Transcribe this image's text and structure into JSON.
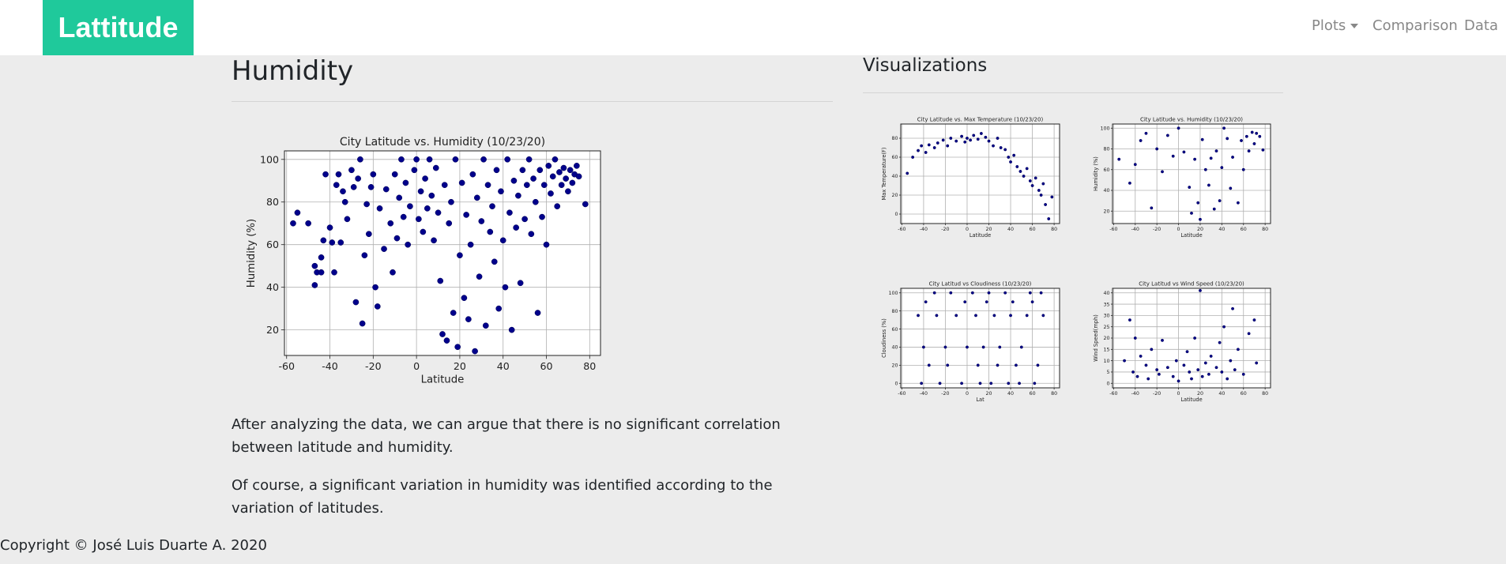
{
  "nav": {
    "brand": "Lattitude",
    "links": [
      "Plots",
      "Comparison",
      "Data"
    ]
  },
  "main": {
    "heading": "Humidity",
    "paragraphs": [
      "After analyzing the data, we can argue that there is no significant correlation between latitude and humidity.",
      "Of course, a significant variation in humidity was identified according to the variation of latitudes."
    ]
  },
  "sidebar": {
    "heading": "Visualizations"
  },
  "footer": {
    "copyright": "Copyright © José Luis Duarte A. 2020"
  },
  "chart_data": [
    {
      "type": "scatter",
      "title": "City Latitude vs. Humidity (10/23/20)",
      "xlabel": "Latitude",
      "ylabel": "Humidity (%)",
      "color": "#00008b",
      "grid": true,
      "xlim": [
        -61,
        85
      ],
      "ylim": [
        8,
        104
      ],
      "xticks": [
        -60,
        -40,
        -20,
        0,
        20,
        40,
        60,
        80
      ],
      "yticks": [
        20,
        40,
        60,
        80,
        100
      ],
      "x": [
        -57,
        -55,
        -47,
        -47,
        -46,
        -44,
        -44,
        -43,
        -42,
        -40,
        -39,
        -38,
        -37,
        -36,
        -35,
        -34,
        -33,
        -32,
        -30,
        -29,
        -28,
        -27,
        -26,
        -25,
        -24,
        -23,
        -22,
        -21,
        -20,
        -19,
        -18,
        -17,
        -15,
        -14,
        -12,
        -11,
        -10,
        -9,
        -8,
        -7,
        -6,
        -5,
        -4,
        -3,
        -1,
        0,
        1,
        2,
        3,
        4,
        5,
        6,
        7,
        8,
        9,
        10,
        11,
        12,
        13,
        14,
        15,
        16,
        17,
        18,
        19,
        20,
        21,
        22,
        23,
        24,
        25,
        26,
        27,
        28,
        29,
        30,
        31,
        32,
        33,
        34,
        35,
        36,
        37,
        38,
        39,
        40,
        41,
        42,
        43,
        44,
        45,
        46,
        47,
        48,
        49,
        50,
        51,
        52,
        53,
        54,
        55,
        56,
        57,
        58,
        59,
        60,
        61,
        62,
        63,
        64,
        65,
        66,
        67,
        68,
        69,
        70,
        71,
        72,
        73,
        74,
        75,
        78,
        -50
      ],
      "y": [
        70,
        75,
        50,
        41,
        47,
        47,
        54,
        62,
        93,
        68,
        61,
        47,
        88,
        93,
        61,
        85,
        80,
        72,
        95,
        87,
        33,
        91,
        100,
        23,
        55,
        79,
        65,
        87,
        93,
        40,
        31,
        77,
        58,
        86,
        70,
        47,
        93,
        63,
        82,
        100,
        73,
        89,
        60,
        78,
        95,
        100,
        72,
        85,
        66,
        91,
        77,
        100,
        83,
        62,
        96,
        75,
        43,
        18,
        88,
        15,
        70,
        80,
        28,
        100,
        12,
        55,
        89,
        35,
        74,
        25,
        60,
        93,
        10,
        82,
        45,
        71,
        100,
        22,
        88,
        66,
        78,
        52,
        95,
        30,
        85,
        62,
        40,
        100,
        75,
        20,
        90,
        68,
        83,
        42,
        95,
        72,
        88,
        100,
        65,
        91,
        80,
        28,
        95,
        73,
        88,
        60,
        97,
        84,
        92,
        100,
        78,
        94,
        88,
        96,
        91,
        85,
        95,
        89,
        93,
        97,
        92,
        79,
        70
      ]
    },
    {
      "type": "scatter",
      "title": "City Latitude vs. Max Temperature (10/23/20)",
      "xlabel": "Latitude",
      "ylabel": "Max Temperature(F)",
      "color": "#00008b",
      "grid": true,
      "xlim": [
        -61,
        85
      ],
      "ylim": [
        -10,
        95
      ],
      "xticks": [
        -60,
        -40,
        -20,
        0,
        20,
        40,
        60,
        80
      ],
      "yticks": [
        0,
        20,
        40,
        60,
        80
      ],
      "x": [
        -55,
        -50,
        -45,
        -42,
        -38,
        -35,
        -30,
        -27,
        -22,
        -18,
        -15,
        -10,
        -5,
        -2,
        0,
        3,
        6,
        10,
        13,
        17,
        20,
        24,
        28,
        31,
        35,
        38,
        40,
        43,
        46,
        49,
        52,
        55,
        58,
        60,
        63,
        66,
        68,
        70,
        72,
        75,
        78
      ],
      "y": [
        43,
        60,
        67,
        72,
        65,
        73,
        70,
        75,
        78,
        72,
        80,
        77,
        82,
        76,
        80,
        78,
        83,
        79,
        85,
        81,
        77,
        72,
        80,
        70,
        68,
        60,
        55,
        62,
        50,
        45,
        40,
        48,
        35,
        30,
        38,
        25,
        20,
        32,
        10,
        -5,
        18
      ]
    },
    {
      "type": "scatter",
      "title": "City Latitude vs. Humidity (10/23/20)",
      "xlabel": "Latitude",
      "ylabel": "Humidity (%)",
      "color": "#00008b",
      "grid": true,
      "xlim": [
        -61,
        85
      ],
      "ylim": [
        8,
        104
      ],
      "xticks": [
        -60,
        -40,
        -20,
        0,
        20,
        40,
        60,
        80
      ],
      "yticks": [
        20,
        40,
        60,
        80,
        100
      ],
      "x": [
        -55,
        -45,
        -40,
        -35,
        -30,
        -25,
        -20,
        -15,
        -10,
        -5,
        0,
        5,
        10,
        12,
        15,
        18,
        20,
        22,
        25,
        28,
        30,
        33,
        35,
        38,
        40,
        42,
        45,
        48,
        50,
        55,
        58,
        60,
        63,
        65,
        68,
        70,
        72,
        75,
        78
      ],
      "y": [
        70,
        47,
        65,
        88,
        95,
        23,
        80,
        58,
        93,
        73,
        100,
        77,
        43,
        18,
        70,
        28,
        12,
        89,
        60,
        45,
        71,
        22,
        78,
        30,
        62,
        100,
        90,
        42,
        72,
        28,
        88,
        60,
        92,
        78,
        96,
        85,
        95,
        92,
        79
      ]
    },
    {
      "type": "scatter",
      "title": "City Latitud vs Cloudiness (10/23/20)",
      "xlabel": "Lat",
      "ylabel": "Cloudiness (%)",
      "color": "#00008b",
      "grid": true,
      "xlim": [
        -61,
        85
      ],
      "ylim": [
        -5,
        105
      ],
      "xticks": [
        -60,
        -40,
        -20,
        0,
        20,
        40,
        60,
        80
      ],
      "yticks": [
        0,
        20,
        40,
        60,
        80,
        100
      ],
      "x": [
        -45,
        -42,
        -40,
        -38,
        -35,
        -30,
        -28,
        -25,
        -20,
        -18,
        -15,
        -10,
        -5,
        -2,
        0,
        5,
        8,
        10,
        12,
        15,
        18,
        20,
        22,
        25,
        28,
        30,
        35,
        38,
        40,
        42,
        45,
        48,
        50,
        55,
        58,
        60,
        62,
        65,
        68,
        70
      ],
      "y": [
        75,
        0,
        40,
        90,
        20,
        100,
        75,
        0,
        40,
        20,
        100,
        75,
        0,
        90,
        40,
        100,
        75,
        20,
        0,
        40,
        90,
        100,
        0,
        75,
        20,
        40,
        100,
        0,
        75,
        90,
        20,
        0,
        40,
        75,
        100,
        90,
        0,
        20,
        100,
        75
      ]
    },
    {
      "type": "scatter",
      "title": "City Latitud vs Wind Speed (10/23/20)",
      "xlabel": "Latitude",
      "ylabel": "Wind Speed(mph)",
      "color": "#00008b",
      "grid": true,
      "xlim": [
        -61,
        85
      ],
      "ylim": [
        -2,
        42
      ],
      "xticks": [
        -60,
        -40,
        -20,
        0,
        20,
        40,
        60,
        80
      ],
      "yticks": [
        0,
        5,
        10,
        15,
        20,
        25,
        30,
        35,
        40
      ],
      "x": [
        -50,
        -45,
        -42,
        -40,
        -38,
        -35,
        -30,
        -28,
        -25,
        -20,
        -18,
        -15,
        -10,
        -5,
        -2,
        0,
        5,
        8,
        10,
        12,
        15,
        18,
        20,
        22,
        25,
        28,
        30,
        35,
        38,
        40,
        42,
        45,
        48,
        50,
        52,
        55,
        60,
        65,
        70,
        72
      ],
      "y": [
        10,
        28,
        5,
        20,
        3,
        12,
        8,
        2,
        15,
        6,
        4,
        19,
        7,
        3,
        10,
        1,
        8,
        14,
        5,
        2,
        20,
        6,
        41,
        3,
        9,
        4,
        12,
        7,
        18,
        5,
        25,
        2,
        10,
        33,
        6,
        15,
        4,
        22,
        28,
        9
      ]
    }
  ]
}
